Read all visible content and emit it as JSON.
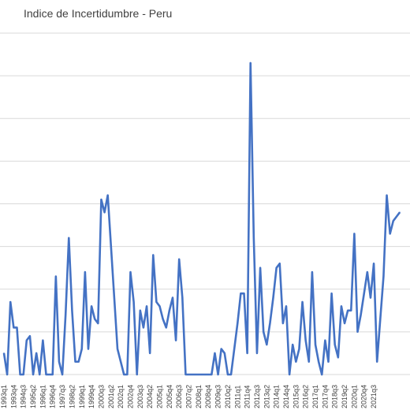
{
  "chart_data": {
    "type": "line",
    "title": "Indice de Incertidumbre - Peru",
    "xlabel": "",
    "ylabel": "",
    "series": [
      {
        "color": "#4472C4",
        "values": [
          0.5,
          0,
          1.7,
          1.1,
          1.1,
          0,
          0,
          0.8,
          0.9,
          0,
          0.5,
          0,
          0.8,
          0,
          0,
          0,
          2.3,
          0.3,
          0,
          1.4,
          3.2,
          1.5,
          0.3,
          0.3,
          0.6,
          2.4,
          0.6,
          1.6,
          1.3,
          1.2,
          4.1,
          3.8,
          4.2,
          3.0,
          1.8,
          0.6,
          0.3,
          0,
          0,
          2.4,
          1.7,
          0,
          1.5,
          1.1,
          1.6,
          0.5,
          2.8,
          1.7,
          1.6,
          1.3,
          1.1,
          1.5,
          1.8,
          0.8,
          2.7,
          1.8,
          0,
          0,
          0,
          0,
          0,
          0,
          0,
          0,
          0,
          0.5,
          0,
          0.6,
          0.5,
          0,
          0,
          0.6,
          1.2,
          1.9,
          1.9,
          0.5,
          7.3,
          3.2,
          0.5,
          2.5,
          1.0,
          0.7,
          1.2,
          1.8,
          2.5,
          2.6,
          1.2,
          1.6,
          0,
          0.7,
          0.3,
          0.6,
          1.7,
          0.8,
          0.3,
          2.4,
          0.7,
          0.3,
          0,
          0.8,
          0.3,
          1.9,
          0.7,
          0.4,
          1.6,
          1.2,
          1.5,
          1.5,
          3.3,
          1.0,
          1.4,
          1.9,
          2.4,
          1.8,
          2.6,
          0.3,
          1.3,
          2.3,
          4.2,
          3.3,
          3.6,
          3.7,
          3.8
        ]
      }
    ],
    "x_tick_labels": [
      "1993q1",
      "1993q4",
      "1994q3",
      "1995q2",
      "1996q1",
      "1996q4",
      "1997q3",
      "1998q2",
      "1999q1",
      "1999q4",
      "2000q3",
      "2001q2",
      "2002q1",
      "2002q4",
      "2003q3",
      "2004q2",
      "2005q1",
      "2005q4",
      "2006q3",
      "2007q2",
      "2008q1",
      "2008q4",
      "2009q3",
      "2010q2",
      "2011q1",
      "2011q4",
      "2012q3",
      "2013q2",
      "2014q1",
      "2014q4",
      "2015q3",
      "2016q2",
      "2017q1",
      "2017q4",
      "2018q3",
      "2019q2",
      "2020q1",
      "2020q4",
      "2021q3"
    ],
    "first_period": "1993q1",
    "periods_per_tick": 3,
    "ylim": [
      0,
      8
    ],
    "y_gridlines": 8,
    "grid": true,
    "legend": "none"
  }
}
